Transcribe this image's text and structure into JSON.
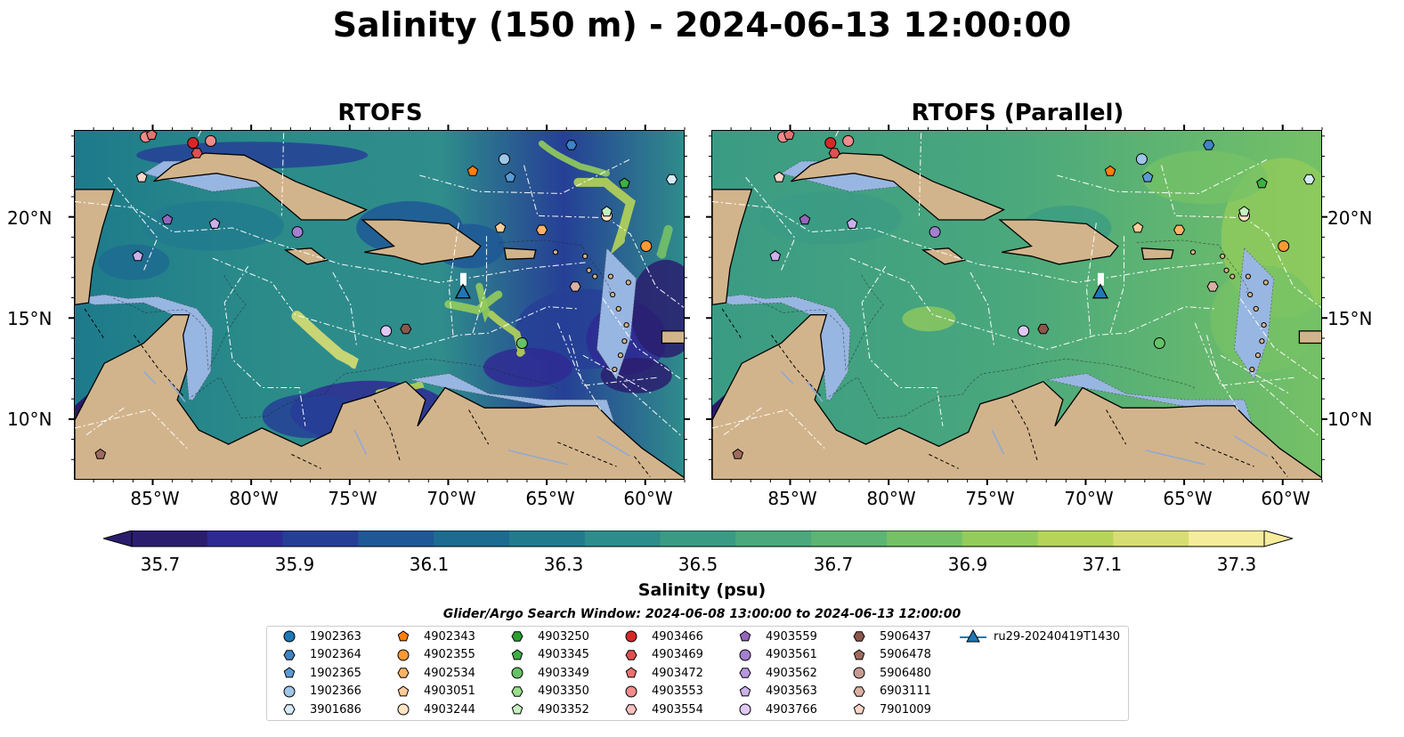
{
  "title": "Salinity (150 m) - 2024-06-13 12:00:00",
  "panels": [
    {
      "title": "RTOFS"
    },
    {
      "title": "RTOFS (Parallel)"
    }
  ],
  "axes": {
    "x_ticks": [
      "85°W",
      "80°W",
      "75°W",
      "70°W",
      "65°W",
      "60°W"
    ],
    "y_ticks": [
      "20°N",
      "15°N",
      "10°N"
    ],
    "lon_range": [
      -89,
      -58
    ],
    "lat_range": [
      7,
      24.3
    ]
  },
  "colorbar": {
    "label": "Salinity (psu)",
    "ticks": [
      "35.7",
      "35.9",
      "36.1",
      "36.3",
      "36.5",
      "36.7",
      "36.9",
      "37.1",
      "37.3"
    ],
    "range": [
      35.7,
      37.4
    ],
    "colors": [
      "#2a1d6e",
      "#2f2a93",
      "#263f96",
      "#1f5896",
      "#1d6b90",
      "#217b8d",
      "#2d8d8a",
      "#3a9b84",
      "#4aa87c",
      "#5cb573",
      "#75c166",
      "#94cc5b",
      "#b6d458",
      "#d8dd72",
      "#f5ec9c"
    ]
  },
  "search_window": "Glider/Argo Search Window: 2024-06-08 13:00:00 to 2024-06-13 12:00:00",
  "legend": [
    {
      "id": "1902363",
      "marker": "circle",
      "color": "#1f77b4"
    },
    {
      "id": "1902364",
      "marker": "hexagon",
      "color": "#3d84c6"
    },
    {
      "id": "1902365",
      "marker": "pentagon",
      "color": "#5a9bd5"
    },
    {
      "id": "1902366",
      "marker": "circle",
      "color": "#9fc5e8"
    },
    {
      "id": "3901686",
      "marker": "hexagon",
      "color": "#d6eaf8"
    },
    {
      "id": "4902343",
      "marker": "pentagon",
      "color": "#ff7f0e"
    },
    {
      "id": "4902355",
      "marker": "circle",
      "color": "#ff9933"
    },
    {
      "id": "4902534",
      "marker": "hexagon",
      "color": "#ffb366"
    },
    {
      "id": "4903051",
      "marker": "pentagon",
      "color": "#ffcc99"
    },
    {
      "id": "4903244",
      "marker": "circle",
      "color": "#ffe4c4"
    },
    {
      "id": "4903250",
      "marker": "hexagon",
      "color": "#2ca02c"
    },
    {
      "id": "4903345",
      "marker": "pentagon",
      "color": "#3cb043"
    },
    {
      "id": "4903349",
      "marker": "circle",
      "color": "#66c266"
    },
    {
      "id": "4903350",
      "marker": "hexagon",
      "color": "#98df8a"
    },
    {
      "id": "4903352",
      "marker": "pentagon",
      "color": "#c7f0c0"
    },
    {
      "id": "4903466",
      "marker": "circle",
      "color": "#d62728"
    },
    {
      "id": "4903469",
      "marker": "hexagon",
      "color": "#e05050"
    },
    {
      "id": "4903472",
      "marker": "pentagon",
      "color": "#ec7070"
    },
    {
      "id": "4903553",
      "marker": "circle",
      "color": "#f28b8b"
    },
    {
      "id": "4903554",
      "marker": "hexagon",
      "color": "#f7c0c0"
    },
    {
      "id": "4903559",
      "marker": "pentagon",
      "color": "#9467bd"
    },
    {
      "id": "4903561",
      "marker": "circle",
      "color": "#a57fd0"
    },
    {
      "id": "4903562",
      "marker": "hexagon",
      "color": "#b897e0"
    },
    {
      "id": "4903563",
      "marker": "pentagon",
      "color": "#cbb0ee"
    },
    {
      "id": "4903766",
      "marker": "circle",
      "color": "#e0c8f5"
    },
    {
      "id": "5906437",
      "marker": "hexagon",
      "color": "#8c564b"
    },
    {
      "id": "5906478",
      "marker": "pentagon",
      "color": "#9d6b5e"
    },
    {
      "id": "5906480",
      "marker": "circle",
      "color": "#c49c94"
    },
    {
      "id": "6903111",
      "marker": "hexagon",
      "color": "#dbb0a4"
    },
    {
      "id": "7901009",
      "marker": "pentagon",
      "color": "#f5d5c8"
    },
    {
      "id": "ru29-20240419T1430",
      "marker": "triangle-line",
      "color": "#1f77b4"
    }
  ],
  "floats": [
    {
      "id": "4903553",
      "lon": -85.4,
      "lat": 24.0
    },
    {
      "id": "4903472",
      "lon": -85.1,
      "lat": 24.1
    },
    {
      "id": "4903466",
      "lon": -83.0,
      "lat": 23.7
    },
    {
      "id": "4903469",
      "lon": -82.8,
      "lat": 23.2
    },
    {
      "id": "4903553",
      "lon": -82.1,
      "lat": 23.8
    },
    {
      "id": "7901009",
      "lon": -85.6,
      "lat": 22.0
    },
    {
      "id": "4902343",
      "lon": -68.8,
      "lat": 22.3
    },
    {
      "id": "1902366",
      "lon": -67.2,
      "lat": 22.9
    },
    {
      "id": "1902365",
      "lon": -66.9,
      "lat": 22.0
    },
    {
      "id": "1902364",
      "lon": -63.8,
      "lat": 23.6
    },
    {
      "id": "4903345",
      "lon": -61.1,
      "lat": 21.7
    },
    {
      "id": "3901686",
      "lon": -58.7,
      "lat": 21.9
    },
    {
      "id": "4903563",
      "lon": -81.9,
      "lat": 19.7
    },
    {
      "id": "4903559",
      "lon": -84.3,
      "lat": 19.9
    },
    {
      "id": "4903561",
      "lon": -77.7,
      "lat": 19.3
    },
    {
      "id": "4903051",
      "lon": -67.4,
      "lat": 19.5
    },
    {
      "id": "4902534",
      "lon": -65.3,
      "lat": 19.4
    },
    {
      "id": "4903244",
      "lon": -62.0,
      "lat": 20.1
    },
    {
      "id": "4903352",
      "lon": -62.0,
      "lat": 20.3
    },
    {
      "id": "4902355",
      "lon": -60.0,
      "lat": 18.6
    },
    {
      "id": "4903563",
      "lon": -85.8,
      "lat": 18.1
    },
    {
      "id": "6903111",
      "lon": -63.6,
      "lat": 16.6
    },
    {
      "id": "4903766",
      "lon": -73.2,
      "lat": 14.4
    },
    {
      "id": "5906437",
      "lon": -72.2,
      "lat": 14.5
    },
    {
      "id": "4903349",
      "lon": -66.3,
      "lat": 13.8
    },
    {
      "id": "5906478",
      "lon": -87.7,
      "lat": 8.3
    }
  ],
  "glider": {
    "lon": -69.3,
    "lat": 16.3
  }
}
